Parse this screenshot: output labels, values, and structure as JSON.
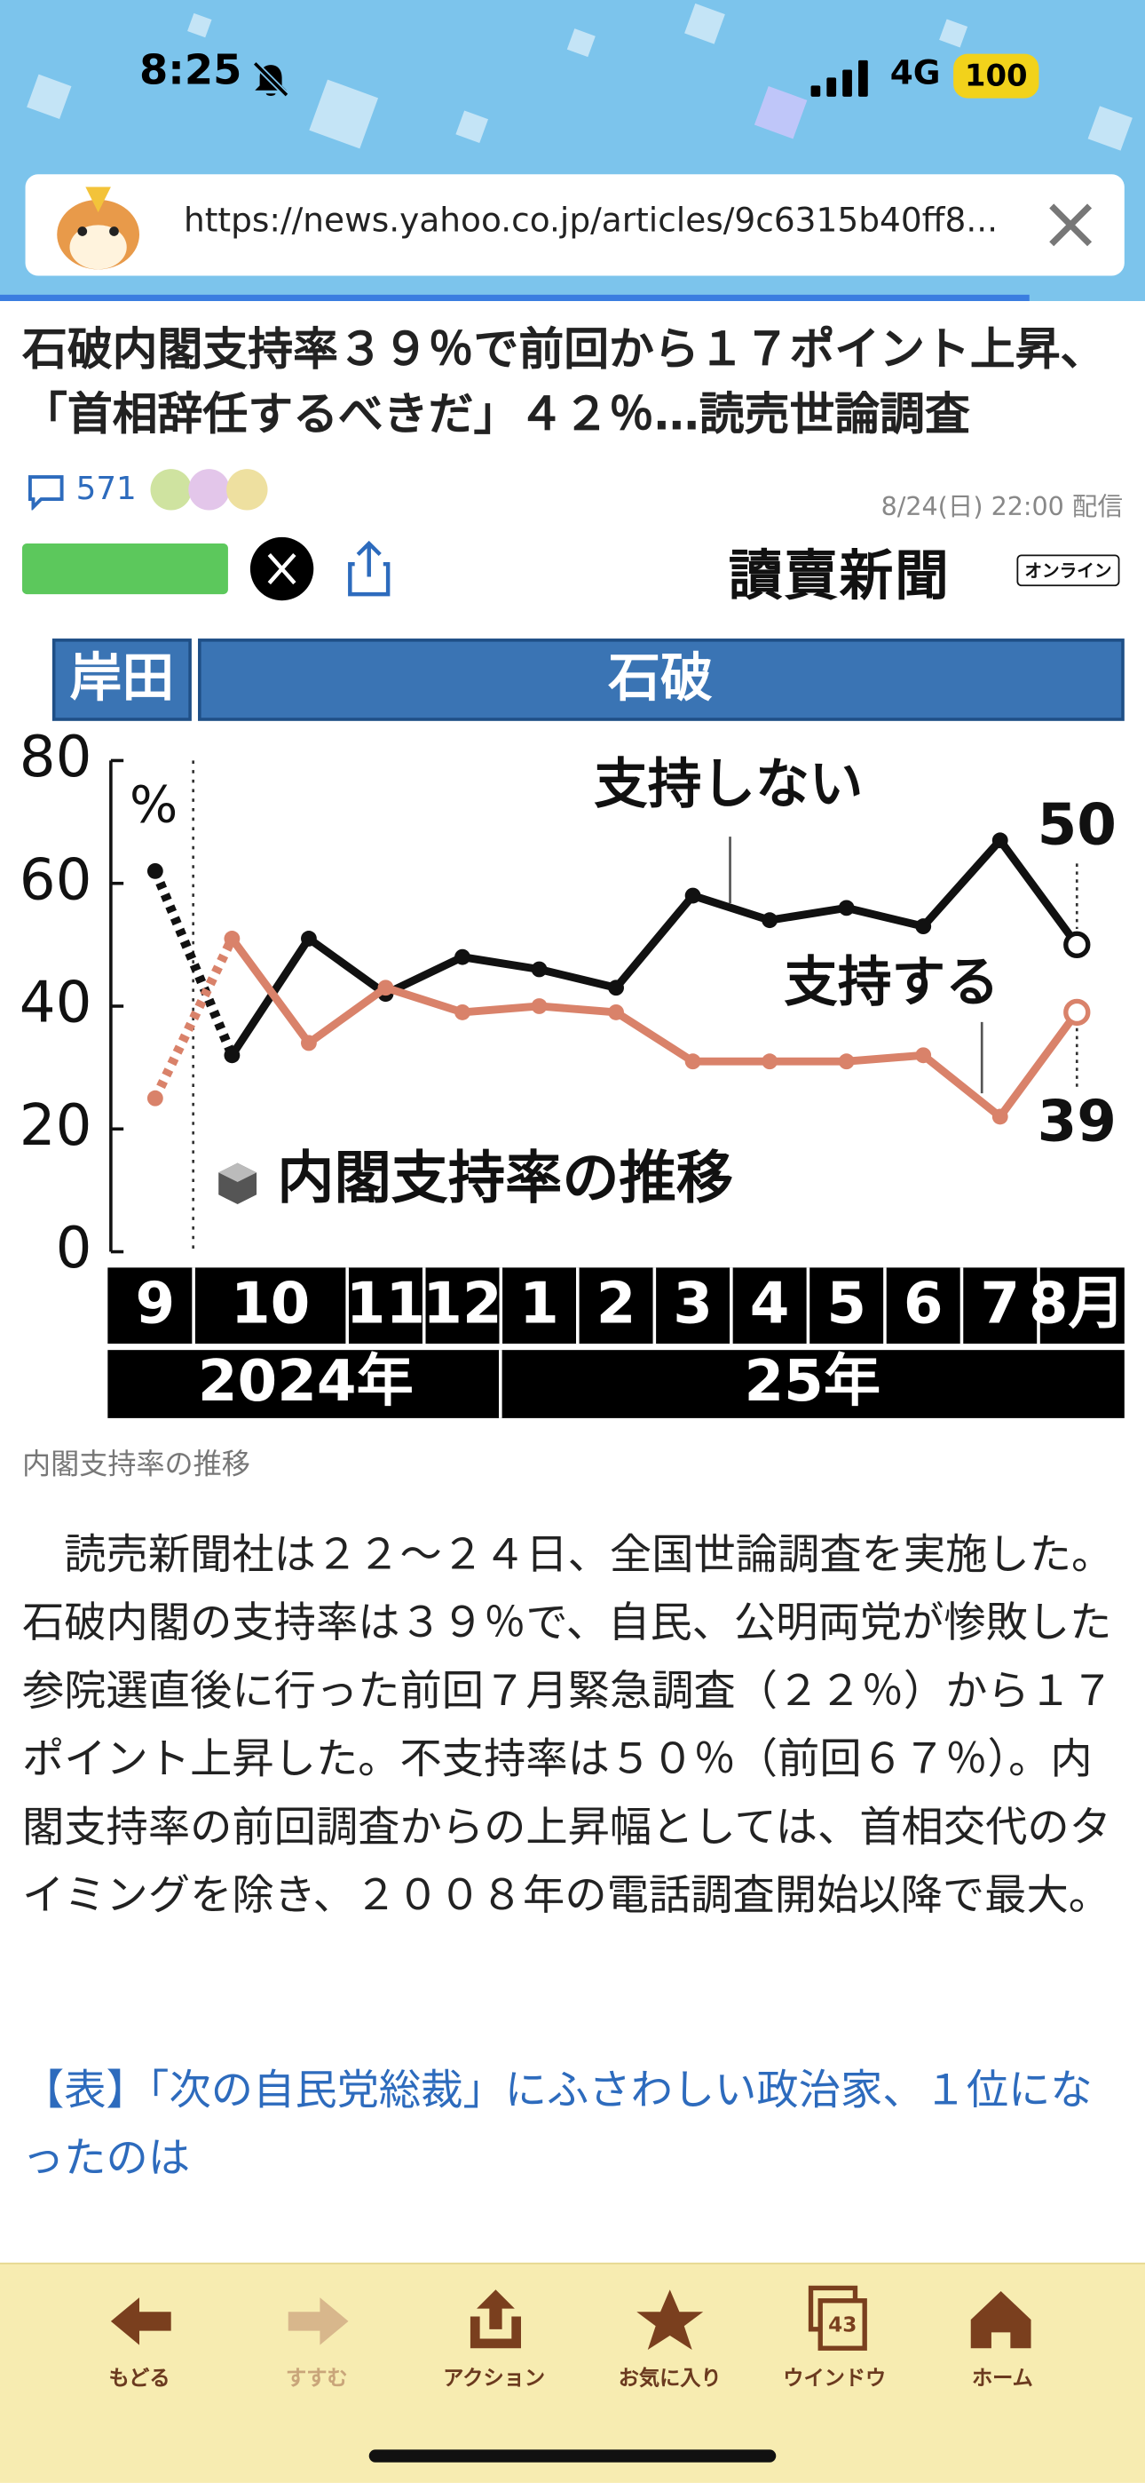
{
  "status_bar": {
    "time": "8:25",
    "network": "4G",
    "battery": "100"
  },
  "url": "https://news.yahoo.co.jp/articles/9c6315b40ff8...",
  "article": {
    "title": "石破内閣支持率３９％で前回から１７ポイント上昇、「首相辞任するべきだ」４２％…読売世論調査",
    "comment_count": "571",
    "date": "8/24(日) 22:00 配信",
    "publisher": "讀賣新聞",
    "publisher_tag": "オンライン",
    "caption": "内閣支持率の推移",
    "body": "読売新聞社は２２～２４日、全国世論調査を実施した。石破内閣の支持率は３９％で、自民、公明両党が惨敗した参院選直後に行った前回７月緊急調査（２２％）から１７ポイント上昇した。不支持率は５０％（前回６７％）。内閣支持率の前回調査からの上昇幅としては、首相交代のタイミングを除き、２００８年の電話調査開始以降で最大。",
    "link": "【表】「次の自民党総裁」にふさわしい政治家、１位になったのは"
  },
  "chart_data": {
    "type": "line",
    "title": "内閣支持率の推移",
    "periods": [
      "岸田",
      "石破"
    ],
    "y_unit": "%",
    "categories": [
      "9",
      null,
      "10",
      "11",
      "12",
      "1",
      "2",
      "3",
      "4",
      "5",
      "6",
      "7",
      "8月"
    ],
    "years": [
      "2024年",
      "25年"
    ],
    "series": [
      {
        "name": "支持しない",
        "color": "#111111",
        "values": [
          62,
          32,
          51,
          42,
          48,
          46,
          43,
          58,
          54,
          56,
          53,
          67,
          50
        ]
      },
      {
        "name": "支持する",
        "color": "#d9826a",
        "values": [
          25,
          51,
          34,
          43,
          39,
          40,
          39,
          31,
          31,
          31,
          32,
          22,
          39
        ]
      }
    ],
    "ylim": [
      0,
      80
    ],
    "yticks": [
      0,
      20,
      40,
      60,
      80
    ]
  },
  "toolbar": {
    "items": [
      "もどる",
      "すすむ",
      "アクション",
      "お気に入り",
      "ウインドウ",
      "ホーム"
    ],
    "window_count": "43"
  }
}
